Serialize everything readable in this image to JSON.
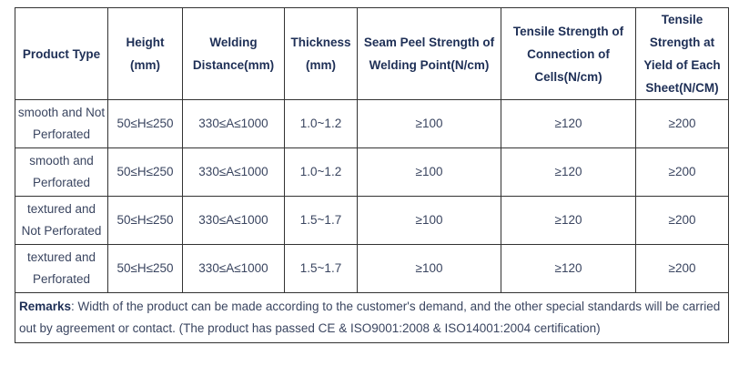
{
  "headers": {
    "product_type": "Product Type",
    "height": "Height (mm)",
    "welding_distance": "Welding Distance(mm)",
    "thickness": "Thickness (mm)",
    "seam_peel": "Seam Peel Strength of Welding Point(N/cm)",
    "tensile_cells": "Tensile Strength of Connection of Cells(N/cm)",
    "tensile_yield": "Tensile Strength at Yield of Each Sheet(N/CM)"
  },
  "rows": [
    {
      "type": "smooth and Not Perforated",
      "height": "50≤H≤250",
      "distance": "330≤A≤1000",
      "thickness": "1.0~1.2",
      "seam_peel": "≥100",
      "tensile_cells": "≥120",
      "tensile_yield": "≥200"
    },
    {
      "type": "smooth and Perforated",
      "height": "50≤H≤250",
      "distance": "330≤A≤1000",
      "thickness": "1.0~1.2",
      "seam_peel": "≥100",
      "tensile_cells": "≥120",
      "tensile_yield": "≥200"
    },
    {
      "type": "textured and Not Perforated",
      "height": "50≤H≤250",
      "distance": "330≤A≤1000",
      "thickness": "1.5~1.7",
      "seam_peel": "≥100",
      "tensile_cells": "≥120",
      "tensile_yield": "≥200"
    },
    {
      "type": "textured and Perforated",
      "height": "50≤H≤250",
      "distance": "330≤A≤1000",
      "thickness": "1.5~1.7",
      "seam_peel": "≥100",
      "tensile_cells": "≥120",
      "tensile_yield": "≥200"
    }
  ],
  "remarks": {
    "label": "Remarks",
    "text": ": Width of the product can be made according to the customer's demand, and the other special standards will be carried out by agreement or contact. (The product has passed CE & ISO9001:2008 & ISO14001:2004 certification)"
  }
}
